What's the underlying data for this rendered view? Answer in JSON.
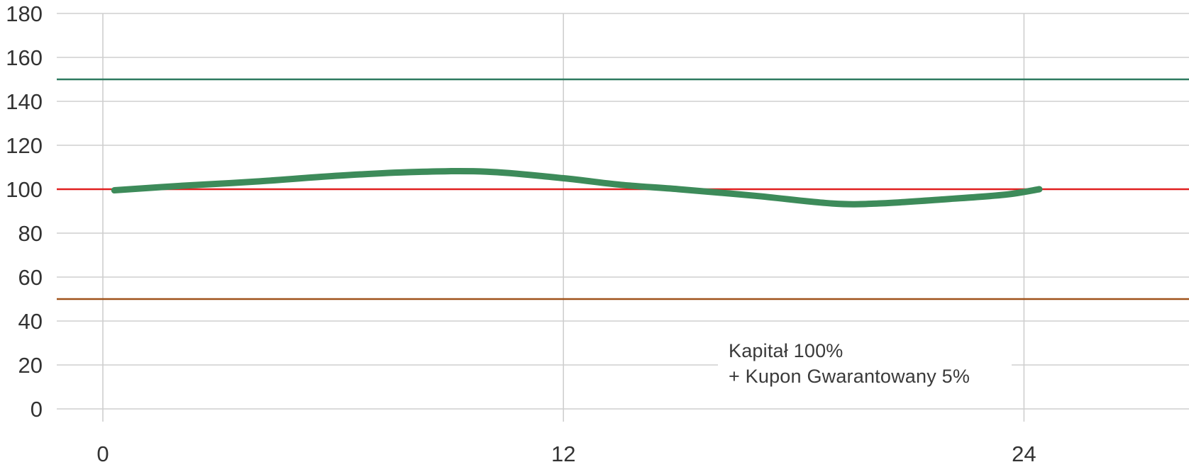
{
  "chart_data": {
    "type": "line",
    "title": "",
    "xlabel": "",
    "ylabel": "",
    "xlim": [
      -2,
      28
    ],
    "ylim": [
      0,
      180
    ],
    "x_ticks": [
      0,
      12,
      24
    ],
    "x_tick_labels": [
      "0",
      "12",
      "24"
    ],
    "y_ticks": [
      0,
      20,
      40,
      60,
      80,
      100,
      120,
      140,
      160,
      180
    ],
    "y_tick_labels": [
      "0",
      "20",
      "40",
      "60",
      "80",
      "100",
      "120",
      "140",
      "160",
      "180"
    ],
    "grid": true,
    "series": [
      {
        "color": "#3d8b5a",
        "x": [
          0.3,
          2,
          4,
          6,
          8,
          10,
          12,
          13.5,
          15,
          17,
          19,
          20.2,
          22,
          23.5,
          24.4
        ],
        "y": [
          99.5,
          101.5,
          103.5,
          106,
          107.8,
          108,
          105,
          102,
          100,
          97,
          93.5,
          93.5,
          95.5,
          97.5,
          100
        ]
      }
    ],
    "reference_lines": [
      {
        "y": 150,
        "color": "#2e7a60"
      },
      {
        "y": 100,
        "color": "#e02020"
      },
      {
        "y": 50,
        "color": "#a0521a"
      }
    ],
    "annotation": {
      "line1": "Kapitał 100%",
      "line2": "+ Kupon Gwarantowany 5%"
    }
  }
}
